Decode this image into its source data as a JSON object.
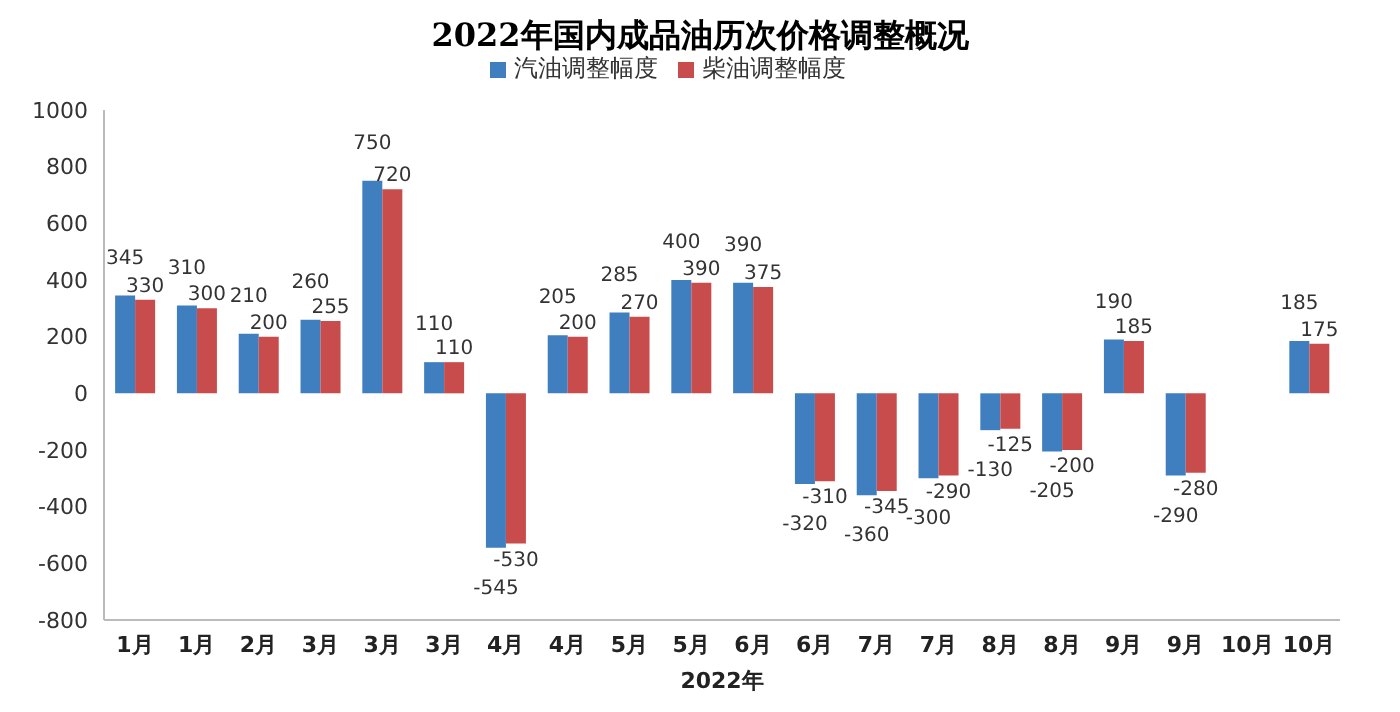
{
  "chart_data": {
    "type": "bar",
    "title": "2022年国内成品油历次价格调整概况",
    "xlabel": "2022年",
    "categories": [
      "1月",
      "1月",
      "2月",
      "3月",
      "3月",
      "3月",
      "4月",
      "4月",
      "5月",
      "5月",
      "6月",
      "6月",
      "7月",
      "7月",
      "8月",
      "8月",
      "9月",
      "9月",
      "10月",
      "10月"
    ],
    "series": [
      {
        "name": "汽油调整幅度",
        "color": "#3f7fbf",
        "values": [
          345,
          310,
          210,
          260,
          750,
          110,
          -545,
          205,
          285,
          400,
          390,
          -320,
          -360,
          -300,
          -130,
          -205,
          190,
          -290,
          null,
          185
        ]
      },
      {
        "name": "柴油调整幅度",
        "color": "#c84c4c",
        "values": [
          330,
          300,
          200,
          255,
          720,
          110,
          -530,
          200,
          270,
          390,
          375,
          -310,
          -345,
          -290,
          -125,
          -200,
          185,
          -280,
          null,
          175
        ]
      }
    ],
    "ylim": [
      -800,
      1000
    ],
    "yticks": [
      -800,
      -600,
      -400,
      -200,
      0,
      200,
      400,
      600,
      800,
      1000
    ],
    "data_labels": true,
    "legend": "top"
  }
}
